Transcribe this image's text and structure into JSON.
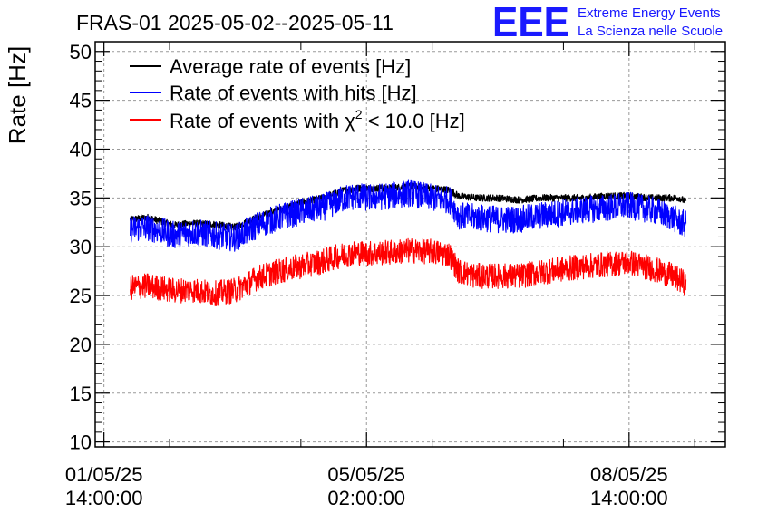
{
  "chart_data": {
    "type": "line",
    "title": "FRAS-01 2025-05-02--2025-05-11",
    "ylabel": "Rate [Hz]",
    "xlabel": "",
    "ylim": [
      9.5,
      51
    ],
    "y_ticks": [
      10,
      15,
      20,
      25,
      30,
      35,
      40,
      45,
      50
    ],
    "x_range_hours": [
      -2,
      142
    ],
    "x_tick_labels": [
      {
        "date": "01/05/25",
        "time": "14:00:00",
        "t": 0
      },
      {
        "date": "05/05/25",
        "time": "02:00:00",
        "t": 60
      },
      {
        "date": "08/05/25",
        "time": "14:00:00",
        "t": 120
      }
    ],
    "x_minor_ticks_hours": [
      15,
      45,
      75,
      105,
      135
    ],
    "grid": true,
    "legend_position": "top-left",
    "logo": {
      "text": "EEE",
      "line1": "Extreme Energy Events",
      "line2": "La Scienza nelle Scuole",
      "color": "#1a1aff"
    },
    "series": [
      {
        "name": "Average rate of events [Hz]",
        "color": "#000000",
        "noise": 0.35,
        "x": [
          6,
          10,
          16,
          20,
          25,
          30,
          35,
          40,
          45,
          50,
          55,
          58,
          60,
          65,
          70,
          75,
          79,
          81,
          85,
          90,
          95,
          100,
          105,
          110,
          115,
          120,
          125,
          130,
          131.5,
          133
        ],
        "values": [
          32.8,
          33.0,
          32.2,
          32.4,
          32.3,
          32.0,
          33.0,
          33.8,
          34.5,
          35.0,
          35.8,
          36.0,
          36.0,
          36.0,
          36.2,
          36.0,
          35.8,
          35.2,
          35.0,
          35.0,
          34.8,
          35.0,
          35.0,
          35.0,
          35.2,
          35.2,
          35.0,
          35.0,
          35.0,
          34.6
        ]
      },
      {
        "name": "Rate of events with hits [Hz]",
        "color": "#0000ff",
        "noise": 1.4,
        "x": [
          6,
          10,
          16,
          20,
          25,
          30,
          35,
          40,
          45,
          50,
          55,
          58,
          60,
          65,
          70,
          75,
          79,
          81,
          85,
          90,
          95,
          100,
          105,
          110,
          115,
          120,
          125,
          130,
          131.5,
          133
        ],
        "values": [
          31.8,
          32.0,
          31.2,
          31.5,
          31.2,
          30.9,
          32.2,
          33.0,
          33.6,
          34.0,
          35.0,
          35.2,
          35.0,
          35.2,
          35.5,
          35.0,
          34.8,
          33.2,
          33.0,
          32.8,
          32.8,
          33.2,
          33.5,
          33.8,
          34.0,
          34.2,
          33.8,
          33.0,
          32.5,
          32.3
        ]
      },
      {
        "name": "Rate of events with χ² < 10.0 [Hz]",
        "legend_prefix": "Rate of events with ",
        "legend_symbol": "χ",
        "legend_superscript": "2",
        "legend_suffix": " < 10.0 [Hz]",
        "color": "#ff0000",
        "noise": 1.3,
        "x": [
          6,
          10,
          16,
          20,
          25,
          30,
          35,
          40,
          45,
          50,
          55,
          58,
          60,
          65,
          70,
          75,
          79,
          81,
          85,
          90,
          95,
          100,
          105,
          110,
          115,
          120,
          125,
          130,
          131.5,
          133
        ],
        "values": [
          25.8,
          26.0,
          25.5,
          25.6,
          25.2,
          25.5,
          26.8,
          27.5,
          28.0,
          28.5,
          29.2,
          29.4,
          29.3,
          29.4,
          29.6,
          29.5,
          29.2,
          27.5,
          27.0,
          27.0,
          27.0,
          27.4,
          27.7,
          28.0,
          28.2,
          28.4,
          27.8,
          27.0,
          26.6,
          26.2
        ]
      }
    ]
  }
}
